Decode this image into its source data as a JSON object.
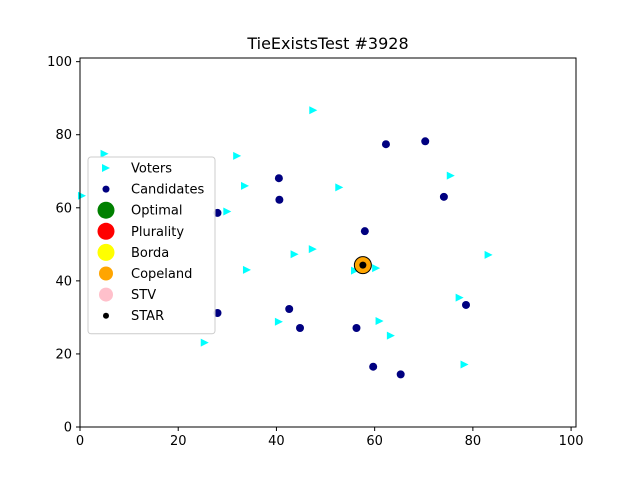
{
  "chart_data": {
    "type": "scatter",
    "title": "TieExistsTest #3928",
    "xlabel": "",
    "ylabel": "",
    "xlim": [
      0,
      101
    ],
    "ylim": [
      0,
      101
    ],
    "xticks": [
      0,
      20,
      40,
      60,
      80,
      100
    ],
    "yticks": [
      0,
      20,
      40,
      60,
      80,
      100
    ],
    "grid": false,
    "legend_position": "center-left",
    "series": [
      {
        "name": "Voters",
        "marker": "triangle-right",
        "color": "#00ffff",
        "points": [
          [
            47.5,
            86.7
          ],
          [
            5,
            74.8
          ],
          [
            32,
            74.2
          ],
          [
            75.5,
            68.8
          ],
          [
            33.6,
            66
          ],
          [
            52.8,
            65.6
          ],
          [
            0.4,
            63.3
          ],
          [
            30,
            59
          ],
          [
            47.4,
            48.7
          ],
          [
            43.7,
            47.3
          ],
          [
            83.2,
            47.1
          ],
          [
            60.3,
            43.5
          ],
          [
            56,
            42.8
          ],
          [
            34,
            43
          ],
          [
            77.3,
            35.4
          ],
          [
            61,
            29
          ],
          [
            40.5,
            28.8
          ],
          [
            63.3,
            25
          ],
          [
            25.4,
            23.1
          ],
          [
            78.3,
            17.1
          ]
        ]
      },
      {
        "name": "Candidates",
        "marker": "circle",
        "color": "#000080",
        "points": [
          [
            70.3,
            78.2
          ],
          [
            62.3,
            77.4
          ],
          [
            40.5,
            68.1
          ],
          [
            74.1,
            63
          ],
          [
            40.6,
            62.2
          ],
          [
            28,
            58.6
          ],
          [
            58,
            53.6
          ],
          [
            78.6,
            33.4
          ],
          [
            42.6,
            32.3
          ],
          [
            28,
            31.2
          ],
          [
            44.8,
            27.1
          ],
          [
            56.3,
            27.1
          ],
          [
            59.7,
            16.5
          ],
          [
            65.3,
            14.4
          ]
        ]
      },
      {
        "name": "Optimal",
        "marker": "circle-large",
        "color": "#008000",
        "points": []
      },
      {
        "name": "Plurality",
        "marker": "circle-large",
        "color": "#ff0000",
        "points": []
      },
      {
        "name": "Borda",
        "marker": "circle-large",
        "color": "#ffff00",
        "points": []
      },
      {
        "name": "Copeland",
        "marker": "circle-medium",
        "color": "#ffa500",
        "points": [
          [
            57.6,
            44.3
          ]
        ]
      },
      {
        "name": "STV",
        "marker": "circle-medium",
        "color": "#ffc0cb",
        "points": []
      },
      {
        "name": "STAR",
        "marker": "circle-small",
        "color": "#000000",
        "points": [
          [
            57.6,
            44.3
          ]
        ]
      }
    ]
  }
}
